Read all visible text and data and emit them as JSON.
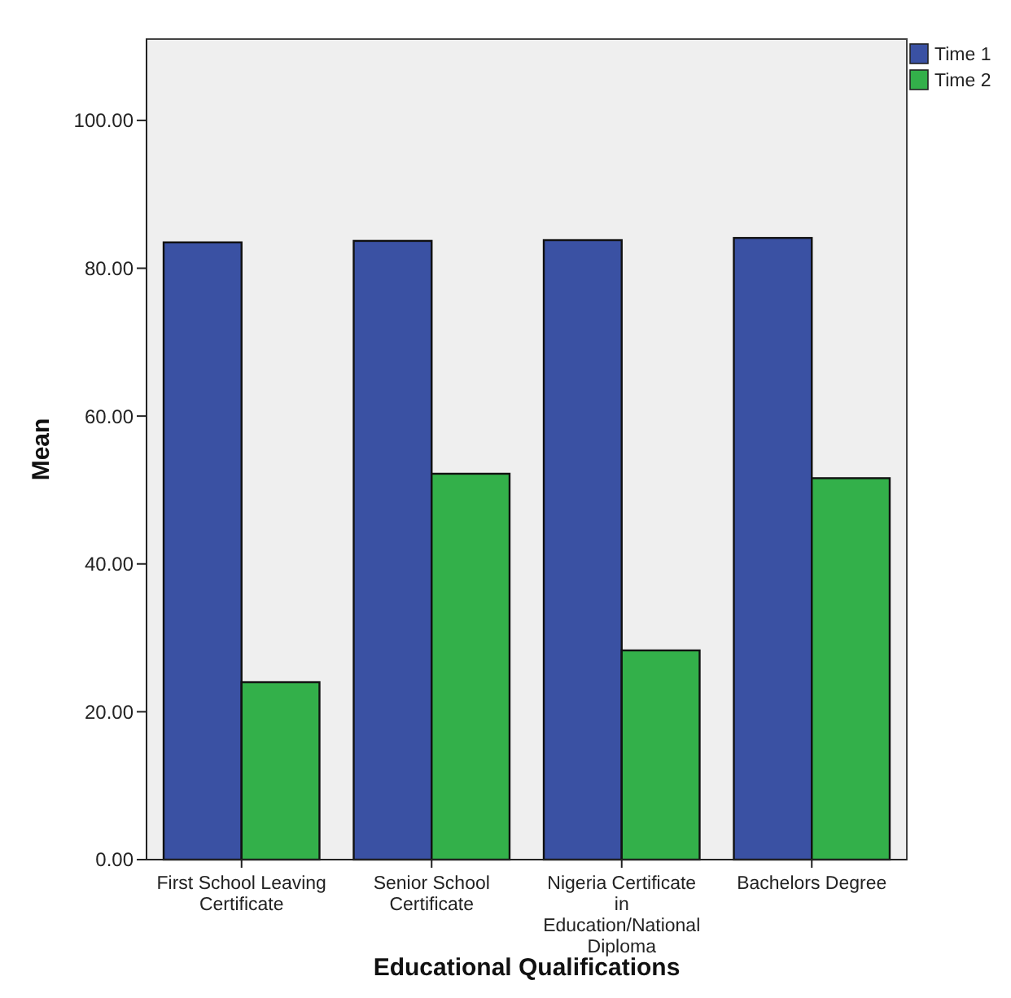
{
  "chart_data": {
    "type": "bar",
    "xlabel": "Educational Qualifications",
    "ylabel": "Mean",
    "categories": [
      "First School Leaving Certificate",
      "Senior School Certificate",
      "Nigeria Certificate in Education/National Diploma",
      "Bachelors Degree"
    ],
    "series": [
      {
        "name": "Time 1",
        "color": "#3a51a3",
        "values": [
          83.5,
          83.7,
          83.8,
          84.1
        ]
      },
      {
        "name": "Time 2",
        "color": "#33b04a",
        "values": [
          24.0,
          52.2,
          28.3,
          51.6
        ]
      }
    ],
    "ylim": [
      0,
      111
    ],
    "yticks": [
      {
        "value": 0,
        "label": "0.00"
      },
      {
        "value": 20,
        "label": "20.00"
      },
      {
        "value": 40,
        "label": "40.00"
      },
      {
        "value": 60,
        "label": "60.00"
      },
      {
        "value": 80,
        "label": "80.00"
      },
      {
        "value": 100,
        "label": "100.00"
      }
    ],
    "grid": false,
    "legend": "top right"
  }
}
